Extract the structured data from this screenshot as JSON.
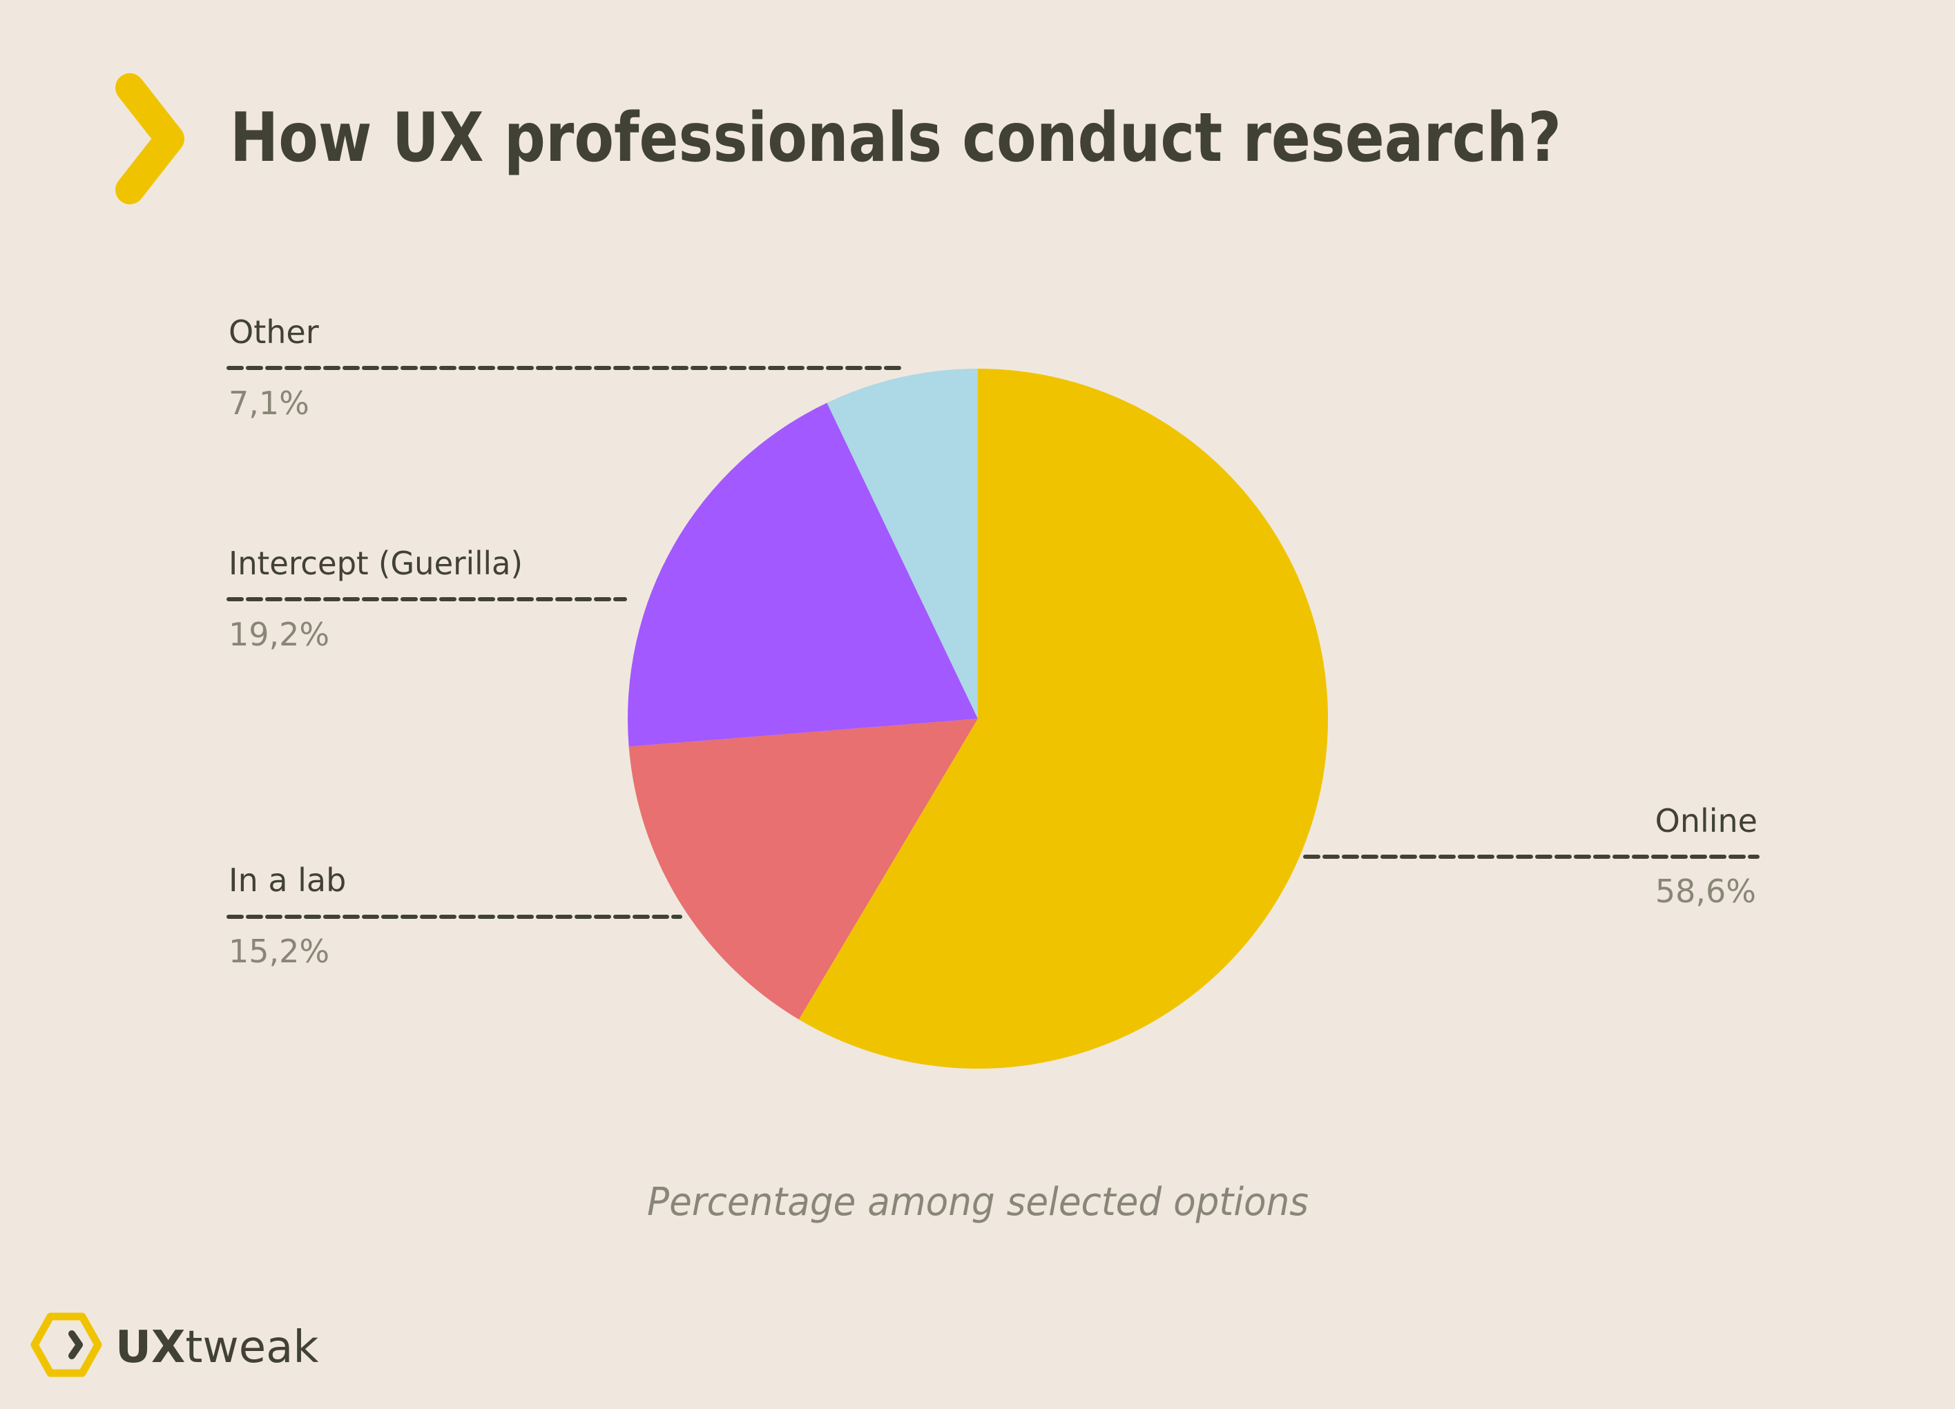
{
  "header": {
    "title": "How UX professionals conduct research?",
    "icon": "chevron-right-icon"
  },
  "colors": {
    "background": "#F0E8DE",
    "text_dark": "#414136",
    "text_muted": "#898677",
    "accent": "#F0C300"
  },
  "labels": {
    "other": {
      "name": "Other",
      "value": "7,1%"
    },
    "intercept": {
      "name": "Intercept (Guerilla)",
      "value": "19,2%"
    },
    "lab": {
      "name": "In a lab",
      "value": "15,2%"
    },
    "online": {
      "name": "Online",
      "value": "58,6%"
    }
  },
  "caption": "Percentage among selected options",
  "logo": {
    "bold": "UX",
    "regular": "tweak",
    "icon": "hexagon-chevron-icon"
  },
  "chart_data": {
    "type": "pie",
    "title": "How UX professionals conduct research?",
    "subtitle": "Percentage among selected options",
    "categories": [
      "Online",
      "In a lab",
      "Intercept (Guerilla)",
      "Other"
    ],
    "values": [
      58.6,
      15.2,
      19.2,
      7.1
    ],
    "value_labels": [
      "58,6%",
      "15,2%",
      "19,2%",
      "7,1%"
    ],
    "colors": [
      "#F0C300",
      "#E87070",
      "#A259FF",
      "#ADD8E6"
    ],
    "start_angle": "12 o'clock",
    "direction": "clockwise",
    "legend": "leader-line labels",
    "unit": "%"
  }
}
